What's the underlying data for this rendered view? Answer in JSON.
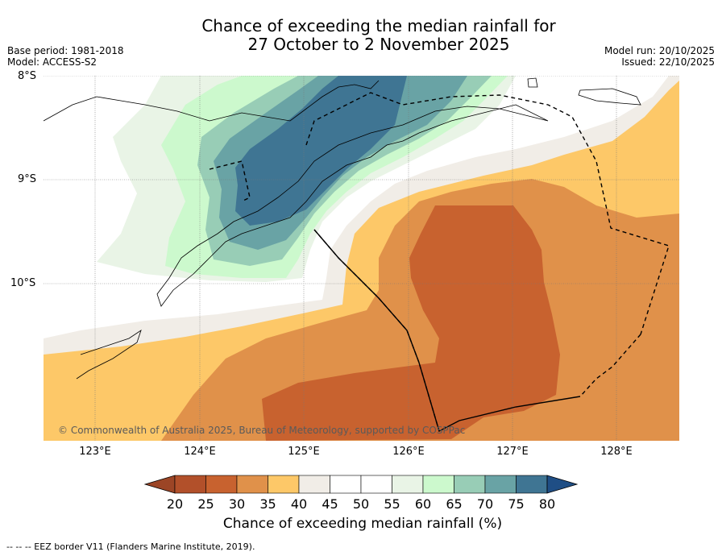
{
  "title_line1": "Chance of exceeding the median rainfall for",
  "title_line2": "27 October to 2 November 2025",
  "base_period": "Base period: 1981-2018",
  "model": "Model: ACCESS-S2",
  "model_run": "Model run: 20/10/2025",
  "issued": "Issued: 22/10/2025",
  "lat_labels": [
    "8°S",
    "9°S",
    "10°S"
  ],
  "lon_labels": [
    "123°E",
    "124°E",
    "125°E",
    "126°E",
    "127°E",
    "128°E"
  ],
  "copyright": "© Commonwealth of Australia 2025, Bureau of Meteorology, supported by COSPPac",
  "colorbar_title": "Chance of exceeding median rainfall (%)",
  "colorbar_ticks": [
    "20",
    "25",
    "30",
    "35",
    "40",
    "45",
    "50",
    "55",
    "60",
    "65",
    "70",
    "75",
    "80"
  ],
  "colorbar_colors": [
    "#b2502a",
    "#c8622f",
    "#e0914a",
    "#fdc868",
    "#f1ede7",
    "#ffffff",
    "#ffffff",
    "#e9f4e6",
    "#ccf9cd",
    "#98cdb6",
    "#69a3a5",
    "#3f7593"
  ],
  "colorbar_low": "#9c4526",
  "colorbar_high": "#1f4e85",
  "footer": "--  --  -- EEZ border V11 (Flanders Marine Institute, 2019)."
}
